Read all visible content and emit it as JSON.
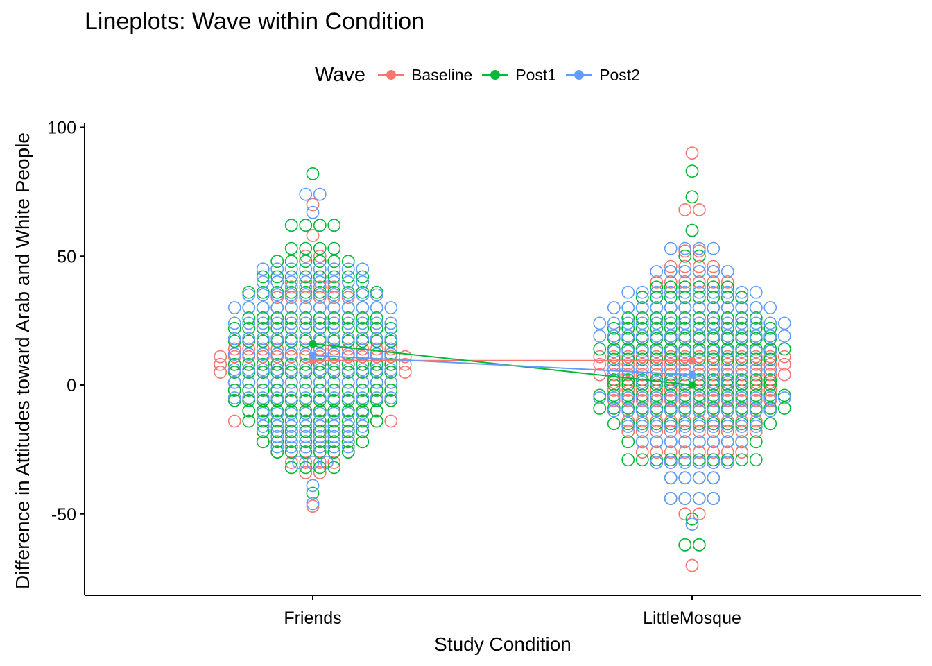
{
  "chart_data": {
    "type": "scatter",
    "title": "Lineplots: Wave within Condition",
    "xlabel": "Study Condition",
    "ylabel": "Difference in Attitudes toward Arab and White People",
    "categories": [
      "Friends",
      "LittleMosque"
    ],
    "ylim": [
      -80,
      100
    ],
    "yticks": [
      100,
      50,
      0,
      -50
    ],
    "grid": false,
    "legend": {
      "title": "Wave",
      "position": "top"
    },
    "series": [
      {
        "name": "Baseline",
        "color": "#F8766D",
        "means": [
          9.5,
          9.5
        ],
        "points": {
          "Friends": [
            [
              -47,
              1
            ],
            [
              -34,
              2
            ],
            [
              -30,
              4
            ],
            [
              -26,
              6
            ],
            [
              -22,
              8
            ],
            [
              -18,
              8
            ],
            [
              -14,
              12
            ],
            [
              -10,
              10
            ],
            [
              -6,
              12
            ],
            [
              -2,
              12
            ],
            [
              1,
              12
            ],
            [
              5,
              14
            ],
            [
              8,
              14
            ],
            [
              11,
              14
            ],
            [
              14,
              12
            ],
            [
              18,
              10
            ],
            [
              22,
              10
            ],
            [
              26,
              8
            ],
            [
              30,
              8
            ],
            [
              34,
              6
            ],
            [
              38,
              4
            ],
            [
              42,
              2
            ],
            [
              50,
              2
            ],
            [
              58,
              1
            ],
            [
              70,
              1
            ]
          ],
          "LittleMosque": [
            [
              -70,
              1
            ],
            [
              -62,
              2
            ],
            [
              -50,
              2
            ],
            [
              -44,
              4
            ],
            [
              -36,
              4
            ],
            [
              -30,
              6
            ],
            [
              -26,
              8
            ],
            [
              -22,
              8
            ],
            [
              -18,
              10
            ],
            [
              -14,
              10
            ],
            [
              -10,
              12
            ],
            [
              -6,
              12
            ],
            [
              -2,
              12
            ],
            [
              1,
              12
            ],
            [
              4,
              14
            ],
            [
              8,
              14
            ],
            [
              11,
              14
            ],
            [
              14,
              12
            ],
            [
              18,
              10
            ],
            [
              22,
              10
            ],
            [
              26,
              8
            ],
            [
              30,
              8
            ],
            [
              34,
              8
            ],
            [
              40,
              6
            ],
            [
              46,
              4
            ],
            [
              52,
              2
            ],
            [
              60,
              1
            ],
            [
              68,
              2
            ],
            [
              90,
              1
            ]
          ]
        }
      },
      {
        "name": "Post1",
        "color": "#00BA38",
        "means": [
          16,
          0
        ],
        "points": {
          "Friends": [
            [
              -42,
              1
            ],
            [
              -32,
              4
            ],
            [
              -26,
              6
            ],
            [
              -22,
              8
            ],
            [
              -18,
              8
            ],
            [
              -14,
              10
            ],
            [
              -10,
              10
            ],
            [
              -6,
              12
            ],
            [
              -2,
              12
            ],
            [
              1,
              12
            ],
            [
              5,
              12
            ],
            [
              8,
              12
            ],
            [
              12,
              12
            ],
            [
              17,
              12
            ],
            [
              22,
              12
            ],
            [
              26,
              10
            ],
            [
              30,
              10
            ],
            [
              36,
              10
            ],
            [
              42,
              8
            ],
            [
              48,
              6
            ],
            [
              53,
              4
            ],
            [
              62,
              4
            ],
            [
              82,
              1
            ]
          ],
          "LittleMosque": [
            [
              -62,
              2
            ],
            [
              -52,
              1
            ],
            [
              -44,
              4
            ],
            [
              -36,
              4
            ],
            [
              -29,
              10
            ],
            [
              -22,
              10
            ],
            [
              -15,
              12
            ],
            [
              -9,
              14
            ],
            [
              -4,
              14
            ],
            [
              0,
              12
            ],
            [
              2,
              12
            ],
            [
              6,
              12
            ],
            [
              10,
              12
            ],
            [
              14,
              14
            ],
            [
              18,
              12
            ],
            [
              22,
              12
            ],
            [
              26,
              10
            ],
            [
              30,
              10
            ],
            [
              34,
              8
            ],
            [
              38,
              6
            ],
            [
              44,
              4
            ],
            [
              50,
              2
            ],
            [
              60,
              1
            ],
            [
              73,
              1
            ],
            [
              83,
              1
            ]
          ]
        }
      },
      {
        "name": "Post2",
        "color": "#619CFF",
        "means": [
          11.5,
          4
        ],
        "points": {
          "Friends": [
            [
              -46,
              1
            ],
            [
              -39,
              1
            ],
            [
              -30,
              3
            ],
            [
              -24,
              6
            ],
            [
              -20,
              6
            ],
            [
              -16,
              8
            ],
            [
              -11,
              8
            ],
            [
              -5,
              12
            ],
            [
              1,
              12
            ],
            [
              6,
              12
            ],
            [
              12,
              12
            ],
            [
              18,
              12
            ],
            [
              24,
              12
            ],
            [
              30,
              12
            ],
            [
              35,
              10
            ],
            [
              40,
              8
            ],
            [
              45,
              8
            ],
            [
              67,
              1
            ],
            [
              74,
              2
            ]
          ],
          "LittleMosque": [
            [
              -54,
              1
            ],
            [
              -44,
              4
            ],
            [
              -36,
              4
            ],
            [
              -30,
              6
            ],
            [
              -22,
              8
            ],
            [
              -16,
              10
            ],
            [
              -10,
              12
            ],
            [
              -5,
              14
            ],
            [
              1,
              8
            ],
            [
              6,
              12
            ],
            [
              13,
              12
            ],
            [
              19,
              14
            ],
            [
              24,
              14
            ],
            [
              30,
              12
            ],
            [
              36,
              10
            ],
            [
              44,
              6
            ],
            [
              53,
              4
            ]
          ]
        }
      }
    ]
  }
}
